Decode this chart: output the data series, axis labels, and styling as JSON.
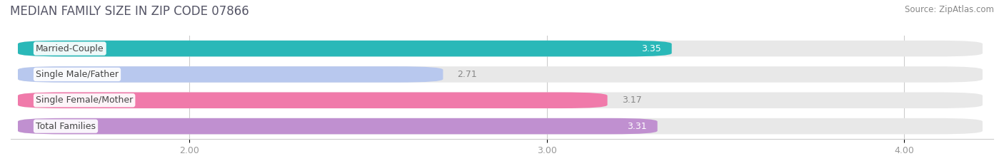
{
  "title": "MEDIAN FAMILY SIZE IN ZIP CODE 07866",
  "source": "Source: ZipAtlas.com",
  "categories": [
    "Married-Couple",
    "Single Male/Father",
    "Single Female/Mother",
    "Total Families"
  ],
  "values": [
    3.35,
    2.71,
    3.17,
    3.31
  ],
  "bar_colors": [
    "#2ab8b8",
    "#b8c8ee",
    "#f07aaa",
    "#c090d0"
  ],
  "xmin": 1.5,
  "xmax": 4.25,
  "xticks": [
    2.0,
    3.0,
    4.0
  ],
  "background_color": "#ffffff",
  "bar_bg_color": "#e8e8e8",
  "figsize": [
    14.06,
    2.33
  ],
  "dpi": 100,
  "bar_height": 0.62,
  "title_fontsize": 12,
  "label_fontsize": 9,
  "value_fontsize": 9,
  "tick_fontsize": 9,
  "value_inside_color": "#ffffff",
  "value_outside_color": "#888888",
  "value_inside_indices": [
    0,
    3
  ],
  "label_text_color": "#444444"
}
